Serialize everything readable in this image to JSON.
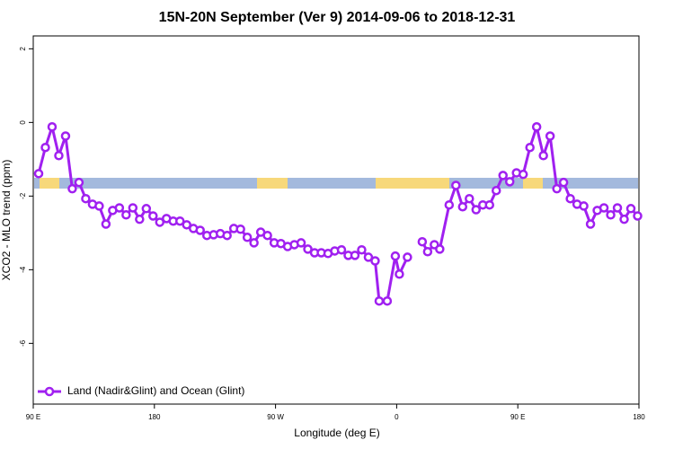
{
  "chart_data": {
    "type": "line",
    "title": "15N-20N September (Ver 9)   2014-09-06 to 2018-12-31",
    "x_label": "Longitude (deg E)",
    "y_label": "XCO2 - MLO trend (ppm)",
    "xlim": [
      90,
      540
    ],
    "xticks": [
      {
        "value": 90,
        "label": "90 E"
      },
      180,
      {
        "value": 270,
        "label": "90 W"
      },
      {
        "value": 360,
        "label": "0"
      },
      {
        "value": 450,
        "label": "90 E"
      },
      {
        "value": 540,
        "label": "180"
      }
    ],
    "ylim": [
      -7.65,
      2.35
    ],
    "yticks": [
      2,
      0,
      -2,
      -4,
      -6
    ],
    "legend": "bottom-left",
    "x": [
      94,
      99,
      104,
      109,
      114,
      119,
      124,
      129,
      134,
      139,
      144,
      149,
      154,
      159,
      164,
      169,
      174,
      179,
      184,
      189,
      194,
      199,
      204,
      209,
      214,
      219,
      224,
      229,
      234,
      239,
      244,
      249,
      254,
      259,
      264,
      269,
      274,
      279,
      284,
      289,
      294,
      299,
      304,
      309,
      314,
      319,
      324,
      329,
      334,
      339,
      344,
      347,
      353,
      359,
      362,
      368,
      374,
      379,
      383,
      388,
      392,
      399,
      404,
      409,
      414,
      419,
      424,
      429,
      434,
      439,
      444,
      449,
      454,
      459,
      464,
      469,
      474,
      479,
      484,
      489,
      494,
      499,
      504,
      509,
      514,
      519,
      524,
      529,
      534,
      539
    ],
    "series": [
      {
        "name": "Land (Nadir&Glint) and Ocean (Glint)",
        "color": "#a020f0",
        "values": [
          -1.39,
          -0.68,
          -0.12,
          -0.9,
          -0.37,
          -1.8,
          -1.63,
          -2.07,
          -2.22,
          -2.27,
          -2.76,
          -2.39,
          -2.32,
          -2.51,
          -2.32,
          -2.63,
          -2.34,
          -2.54,
          -2.71,
          -2.61,
          -2.68,
          -2.68,
          -2.78,
          -2.88,
          -2.93,
          -3.07,
          -3.05,
          -3.02,
          -3.07,
          -2.88,
          -2.9,
          -3.12,
          -3.27,
          -2.98,
          -3.07,
          -3.27,
          -3.29,
          -3.37,
          -3.32,
          -3.27,
          -3.44,
          -3.54,
          -3.54,
          -3.56,
          -3.49,
          -3.46,
          -3.61,
          -3.61,
          -3.46,
          -3.66,
          -3.76,
          -4.85,
          -4.85,
          -3.63,
          -4.12,
          -3.66,
          null,
          -3.24,
          -3.51,
          -3.32,
          -3.44,
          -2.24,
          -1.71,
          -2.29,
          -2.07,
          -2.37,
          -2.24,
          -2.24,
          -1.85,
          -1.44,
          -1.61,
          -1.37,
          -1.41,
          -0.68,
          -0.12,
          -0.9,
          -0.37,
          -1.8,
          -1.63,
          -2.07,
          -2.22,
          -2.27,
          -2.76,
          -2.39,
          -2.32,
          -2.51,
          -2.32,
          -2.63,
          -2.34,
          -2.54
        ]
      }
    ]
  }
}
